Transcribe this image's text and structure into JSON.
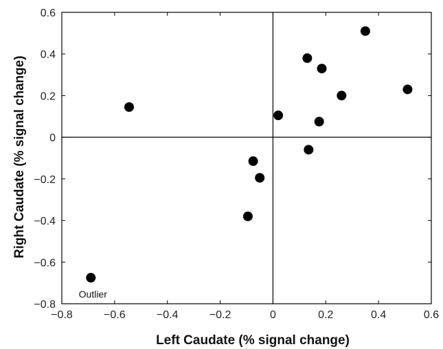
{
  "chart_data": {
    "type": "scatter",
    "title": "",
    "xlabel": "Left Caudate (% signal change)",
    "ylabel": "Right Caudate (% signal change)",
    "xlim": [
      -0.8,
      0.6
    ],
    "ylim": [
      -0.8,
      0.6
    ],
    "xticks": [
      -0.8,
      -0.6,
      -0.4,
      -0.2,
      0,
      0.2,
      0.4,
      0.6
    ],
    "yticks": [
      -0.8,
      -0.6,
      -0.4,
      -0.2,
      0,
      0.2,
      0.4,
      0.6
    ],
    "xtick_labels": [
      "−0.8",
      "−0.6",
      "−0.4",
      "−0.2",
      "0",
      "0.2",
      "0.4",
      "0.6"
    ],
    "ytick_labels": [
      "−0.8",
      "−0.6",
      "−0.4",
      "−0.2",
      "0",
      "0.2",
      "0.4",
      "0.6"
    ],
    "grid": false,
    "zero_lines": true,
    "marker_color": "#000000",
    "points": [
      {
        "x": 0.35,
        "y": 0.51
      },
      {
        "x": 0.13,
        "y": 0.38
      },
      {
        "x": 0.185,
        "y": 0.33
      },
      {
        "x": 0.51,
        "y": 0.23
      },
      {
        "x": 0.26,
        "y": 0.2
      },
      {
        "x": 0.02,
        "y": 0.105
      },
      {
        "x": 0.175,
        "y": 0.075
      },
      {
        "x": 0.135,
        "y": -0.06
      },
      {
        "x": -0.545,
        "y": 0.145
      },
      {
        "x": -0.075,
        "y": -0.115
      },
      {
        "x": -0.05,
        "y": -0.195
      },
      {
        "x": -0.095,
        "y": -0.38
      },
      {
        "x": -0.69,
        "y": -0.675
      }
    ],
    "annotations": [
      {
        "text": "Outlier",
        "x": -0.69,
        "y": -0.675
      }
    ]
  }
}
